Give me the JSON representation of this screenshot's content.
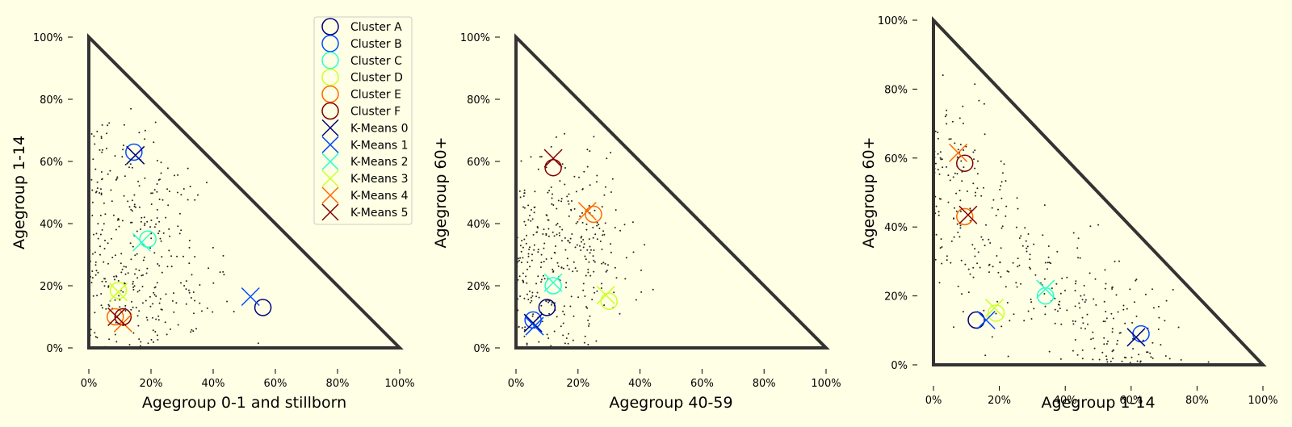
{
  "chart_data": {
    "type": "scatter",
    "legend": {
      "placement": "top-right of first panel",
      "entries": [
        {
          "label": "Cluster A",
          "marker": "circle",
          "color": "#00007f"
        },
        {
          "label": "Cluster B",
          "marker": "circle",
          "color": "#004cff"
        },
        {
          "label": "Cluster C",
          "marker": "circle",
          "color": "#29ffce"
        },
        {
          "label": "Cluster D",
          "marker": "circle",
          "color": "#ceff29"
        },
        {
          "label": "Cluster E",
          "marker": "circle",
          "color": "#ff6800"
        },
        {
          "label": "Cluster F",
          "marker": "circle",
          "color": "#7f0000"
        },
        {
          "label": "K-Means 0",
          "marker": "x",
          "color": "#00007f"
        },
        {
          "label": "K-Means 1",
          "marker": "x",
          "color": "#004cff"
        },
        {
          "label": "K-Means 2",
          "marker": "x",
          "color": "#29ffce"
        },
        {
          "label": "K-Means 3",
          "marker": "x",
          "color": "#ceff29"
        },
        {
          "label": "K-Means 4",
          "marker": "x",
          "color": "#ff6800"
        },
        {
          "label": "K-Means 5",
          "marker": "x",
          "color": "#7f0000"
        }
      ]
    },
    "panels": [
      {
        "xlabel": "Agegroup 0-1 and stillborn",
        "ylabel": "Agegroup 1-14",
        "xlim": [
          0,
          100
        ],
        "ylim": [
          0,
          100
        ],
        "xticks": [
          "0%",
          "20%",
          "40%",
          "60%",
          "80%",
          "100%"
        ],
        "yticks": [
          "0%",
          "20%",
          "40%",
          "60%",
          "80%",
          "100%"
        ],
        "clusters": [
          [
            56,
            13
          ],
          [
            14.5,
            63
          ],
          [
            19,
            35
          ],
          [
            9.5,
            18.5
          ],
          [
            8.5,
            10
          ],
          [
            11,
            10
          ]
        ],
        "kmeans": [
          [
            15,
            62
          ],
          [
            52,
            16.5
          ],
          [
            17,
            34
          ],
          [
            9.5,
            18
          ],
          [
            11,
            8
          ],
          [
            9,
            10
          ]
        ],
        "blob_centers": [
          [
            8,
            25
          ],
          [
            15,
            35
          ],
          [
            22,
            50
          ],
          [
            12,
            12
          ],
          [
            30,
            15
          ],
          [
            5,
            55
          ]
        ]
      },
      {
        "xlabel": "Agegroup 40-59",
        "ylabel": "Agegroup 60+",
        "xlim": [
          0,
          100
        ],
        "ylim": [
          0,
          100
        ],
        "xticks": [
          "0%",
          "20%",
          "40%",
          "60%",
          "80%",
          "100%"
        ],
        "yticks": [
          "0%",
          "20%",
          "40%",
          "60%",
          "80%",
          "100%"
        ],
        "clusters": [
          [
            10,
            13
          ],
          [
            5.5,
            9
          ],
          [
            12,
            20
          ],
          [
            30,
            15
          ],
          [
            25,
            43
          ],
          [
            12,
            58
          ]
        ],
        "kmeans": [
          [
            5.5,
            8
          ],
          [
            6,
            7
          ],
          [
            12,
            21
          ],
          [
            29,
            17
          ],
          [
            23,
            44
          ],
          [
            12,
            61
          ]
        ],
        "blob_centers": [
          [
            8,
            20
          ],
          [
            15,
            35
          ],
          [
            20,
            50
          ],
          [
            12,
            10
          ],
          [
            25,
            25
          ],
          [
            5,
            40
          ]
        ]
      },
      {
        "xlabel": "Agegroup 1-14",
        "ylabel": "Agegroup 60+",
        "xlim": [
          0,
          100
        ],
        "ylim": [
          0,
          100
        ],
        "xticks": [
          "0%",
          "20%",
          "40%",
          "60%",
          "80%",
          "100%"
        ],
        "yticks": [
          "0%",
          "20%",
          "40%",
          "60%",
          "80%",
          "100%"
        ],
        "clusters": [
          [
            13,
            13
          ],
          [
            63,
            9
          ],
          [
            34,
            20
          ],
          [
            19,
            15
          ],
          [
            9.5,
            43
          ],
          [
            9.5,
            58.5
          ]
        ],
        "kmeans": [
          [
            61.5,
            8
          ],
          [
            16,
            13
          ],
          [
            34,
            22
          ],
          [
            18.5,
            16.5
          ],
          [
            7.5,
            61.5
          ],
          [
            10.5,
            43.5
          ]
        ],
        "blob_centers": [
          [
            10,
            45
          ],
          [
            20,
            30
          ],
          [
            35,
            20
          ],
          [
            50,
            12
          ],
          [
            60,
            8
          ],
          [
            5,
            60
          ]
        ]
      }
    ]
  }
}
